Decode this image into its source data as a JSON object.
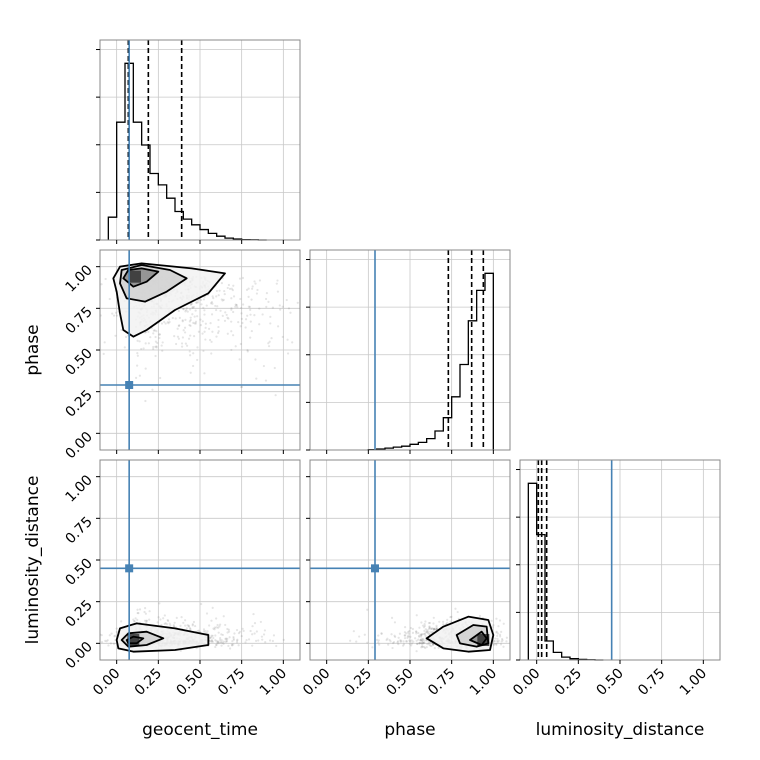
{
  "chart_data": {
    "type": "corner",
    "parameters": [
      "geocent_time",
      "phase",
      "luminosity_distance"
    ],
    "axis_labels": {
      "x": [
        "geocent_time",
        "phase",
        "luminosity_distance"
      ],
      "y": [
        "phase",
        "luminosity_distance"
      ]
    },
    "tick_labels": [
      "0.00",
      "0.25",
      "0.50",
      "0.75",
      "1.00"
    ],
    "truths": [
      0.075,
      0.29,
      0.45
    ],
    "colors": {
      "truth": "#4682b4",
      "hist": "#000000",
      "grid": "#c8c8c8",
      "scatter": "#6e6e6e",
      "quantile": "#000000"
    },
    "grid": true,
    "xlim": [
      [
        -0.1,
        1.1
      ],
      [
        -0.1,
        1.1
      ],
      [
        -0.1,
        1.1
      ]
    ],
    "ylim_2d": [
      [
        -0.1,
        1.1
      ],
      [
        -0.1,
        1.1
      ]
    ],
    "histograms": [
      {
        "param": "geocent_time",
        "bins": [
          -0.05,
          0.0,
          0.05,
          0.1,
          0.15,
          0.2,
          0.25,
          0.3,
          0.35,
          0.4,
          0.45,
          0.5,
          0.55,
          0.6,
          0.65,
          0.7,
          0.75,
          0.8,
          0.85,
          0.9
        ],
        "counts": [
          0.12,
          0.62,
          0.93,
          0.62,
          0.5,
          0.35,
          0.29,
          0.22,
          0.15,
          0.11,
          0.08,
          0.055,
          0.035,
          0.02,
          0.01,
          0.005,
          0.002,
          0.001,
          0.0
        ],
        "quantiles": [
          0.07,
          0.19,
          0.39
        ]
      },
      {
        "param": "phase",
        "bins": [
          0.25,
          0.3,
          0.35,
          0.4,
          0.45,
          0.5,
          0.55,
          0.6,
          0.65,
          0.7,
          0.75,
          0.8,
          0.85,
          0.9,
          0.95,
          1.0
        ],
        "counts": [
          0.002,
          0.005,
          0.01,
          0.015,
          0.02,
          0.03,
          0.04,
          0.06,
          0.1,
          0.17,
          0.28,
          0.45,
          0.68,
          0.84,
          0.93
        ],
        "quantiles": [
          0.73,
          0.87,
          0.94
        ]
      },
      {
        "param": "luminosity_distance",
        "bins": [
          -0.05,
          0.0,
          0.05,
          0.1,
          0.15,
          0.2,
          0.25,
          0.3,
          0.35,
          0.4
        ],
        "counts": [
          0.93,
          0.66,
          0.1,
          0.04,
          0.015,
          0.007,
          0.003,
          0.001,
          0.0
        ],
        "quantiles": [
          0.01,
          0.03,
          0.06
        ]
      }
    ],
    "panels_2d": [
      {
        "x": "geocent_time",
        "y": "phase",
        "contours": [
          [
            [
              0.0,
              0.85
            ],
            [
              -0.02,
              0.93
            ],
            [
              0.02,
              1.0
            ],
            [
              0.15,
              1.02
            ],
            [
              0.45,
              0.99
            ],
            [
              0.65,
              0.96
            ],
            [
              0.55,
              0.84
            ],
            [
              0.35,
              0.74
            ],
            [
              0.18,
              0.62
            ],
            [
              0.1,
              0.58
            ],
            [
              0.04,
              0.62
            ],
            [
              0.02,
              0.72
            ]
          ],
          [
            [
              0.02,
              0.9
            ],
            [
              0.03,
              0.98
            ],
            [
              0.15,
              1.01
            ],
            [
              0.32,
              0.98
            ],
            [
              0.42,
              0.93
            ],
            [
              0.3,
              0.85
            ],
            [
              0.17,
              0.79
            ],
            [
              0.06,
              0.81
            ]
          ],
          [
            [
              0.04,
              0.93
            ],
            [
              0.07,
              0.98
            ],
            [
              0.15,
              0.99
            ],
            [
              0.25,
              0.97
            ],
            [
              0.18,
              0.91
            ],
            [
              0.1,
              0.88
            ]
          ]
        ],
        "density_center": [
          0.11,
          0.94
        ],
        "scatter_spread": [
          0.2,
          0.17
        ],
        "scatter_n": 700
      },
      {
        "x": "geocent_time",
        "y": "luminosity_distance",
        "contours": [
          [
            [
              0.0,
              0.02
            ],
            [
              0.02,
              0.09
            ],
            [
              0.12,
              0.12
            ],
            [
              0.35,
              0.09
            ],
            [
              0.55,
              0.05
            ],
            [
              0.55,
              -0.01
            ],
            [
              0.35,
              -0.04
            ],
            [
              0.1,
              -0.05
            ],
            [
              0.01,
              -0.03
            ]
          ],
          [
            [
              0.03,
              0.02
            ],
            [
              0.07,
              0.06
            ],
            [
              0.18,
              0.07
            ],
            [
              0.28,
              0.03
            ],
            [
              0.18,
              -0.01
            ],
            [
              0.07,
              -0.02
            ]
          ],
          [
            [
              0.06,
              0.02
            ],
            [
              0.1,
              0.04
            ],
            [
              0.16,
              0.03
            ],
            [
              0.12,
              0.0
            ],
            [
              0.07,
              0.0
            ]
          ]
        ],
        "density_center": [
          0.1,
          0.02
        ],
        "scatter_spread": [
          0.2,
          0.05
        ],
        "scatter_n": 700
      },
      {
        "x": "phase",
        "y": "luminosity_distance",
        "contours": [
          [
            [
              0.6,
              0.03
            ],
            [
              0.7,
              0.1
            ],
            [
              0.85,
              0.16
            ],
            [
              0.97,
              0.14
            ],
            [
              1.0,
              0.05
            ],
            [
              0.98,
              -0.04
            ],
            [
              0.85,
              -0.05
            ],
            [
              0.7,
              -0.03
            ]
          ],
          [
            [
              0.78,
              0.05
            ],
            [
              0.88,
              0.11
            ],
            [
              0.96,
              0.1
            ],
            [
              0.97,
              0.0
            ],
            [
              0.9,
              -0.02
            ],
            [
              0.8,
              0.0
            ]
          ],
          [
            [
              0.86,
              0.02
            ],
            [
              0.93,
              0.07
            ],
            [
              0.96,
              0.03
            ],
            [
              0.93,
              -0.01
            ]
          ]
        ],
        "density_center": [
          0.94,
          0.02
        ],
        "scatter_spread": [
          0.17,
          0.05
        ],
        "scatter_n": 700
      }
    ]
  }
}
